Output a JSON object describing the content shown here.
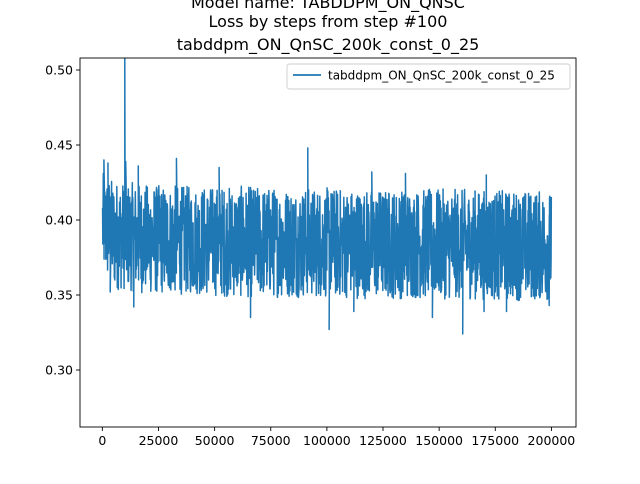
{
  "chart_data": {
    "type": "line",
    "title_lines": [
      "Model name: TABDDPM_ON_QNSC",
      "Loss by steps from step #100",
      "tabddpm_ON_QnSC_200k_const_0_25"
    ],
    "xlabel": "",
    "ylabel": "",
    "xlim": [
      -9950,
      210950
    ],
    "ylim": [
      0.262,
      0.508
    ],
    "x_ticks": [
      0,
      25000,
      50000,
      75000,
      100000,
      125000,
      150000,
      175000,
      200000
    ],
    "x_tick_labels": [
      "0",
      "25000",
      "50000",
      "75000",
      "100000",
      "125000",
      "150000",
      "175000",
      "200000"
    ],
    "y_ticks": [
      0.3,
      0.35,
      0.4,
      0.45,
      0.5
    ],
    "y_tick_labels": [
      "0.30",
      "0.35",
      "0.40",
      "0.45",
      "0.50"
    ],
    "grid": false,
    "legend_position": "top-right",
    "series": [
      {
        "name": "tabddpm_ON_QnSC_200k_const_0_25",
        "color": "#1f77b4",
        "x_start": 100,
        "x_end": 200000,
        "band": {
          "x": [
            100,
            5000,
            10000,
            20000,
            40000,
            60000,
            80000,
            100000,
            120000,
            140000,
            160000,
            180000,
            200000
          ],
          "low": [
            0.365,
            0.355,
            0.355,
            0.352,
            0.352,
            0.35,
            0.35,
            0.35,
            0.349,
            0.349,
            0.349,
            0.348,
            0.348
          ],
          "high": [
            0.43,
            0.425,
            0.424,
            0.422,
            0.421,
            0.421,
            0.42,
            0.42,
            0.419,
            0.419,
            0.419,
            0.418,
            0.418
          ]
        },
        "spikes": [
          {
            "x": 700,
            "y": 0.44
          },
          {
            "x": 2500,
            "y": 0.438
          },
          {
            "x": 10000,
            "y": 0.508
          },
          {
            "x": 10400,
            "y": 0.439
          },
          {
            "x": 16000,
            "y": 0.436
          },
          {
            "x": 33000,
            "y": 0.441
          },
          {
            "x": 52000,
            "y": 0.435
          },
          {
            "x": 91500,
            "y": 0.448
          },
          {
            "x": 120000,
            "y": 0.432
          },
          {
            "x": 135000,
            "y": 0.431
          },
          {
            "x": 171000,
            "y": 0.43
          },
          {
            "x": 200000,
            "y": 0.436
          },
          {
            "x": 3500,
            "y": 0.352
          },
          {
            "x": 14000,
            "y": 0.342
          },
          {
            "x": 66000,
            "y": 0.335
          },
          {
            "x": 101000,
            "y": 0.327
          },
          {
            "x": 112000,
            "y": 0.339
          },
          {
            "x": 160500,
            "y": 0.324
          },
          {
            "x": 170000,
            "y": 0.339
          },
          {
            "x": 180000,
            "y": 0.339
          },
          {
            "x": 147000,
            "y": 0.335
          },
          {
            "x": 199000,
            "y": 0.343
          }
        ]
      }
    ]
  }
}
